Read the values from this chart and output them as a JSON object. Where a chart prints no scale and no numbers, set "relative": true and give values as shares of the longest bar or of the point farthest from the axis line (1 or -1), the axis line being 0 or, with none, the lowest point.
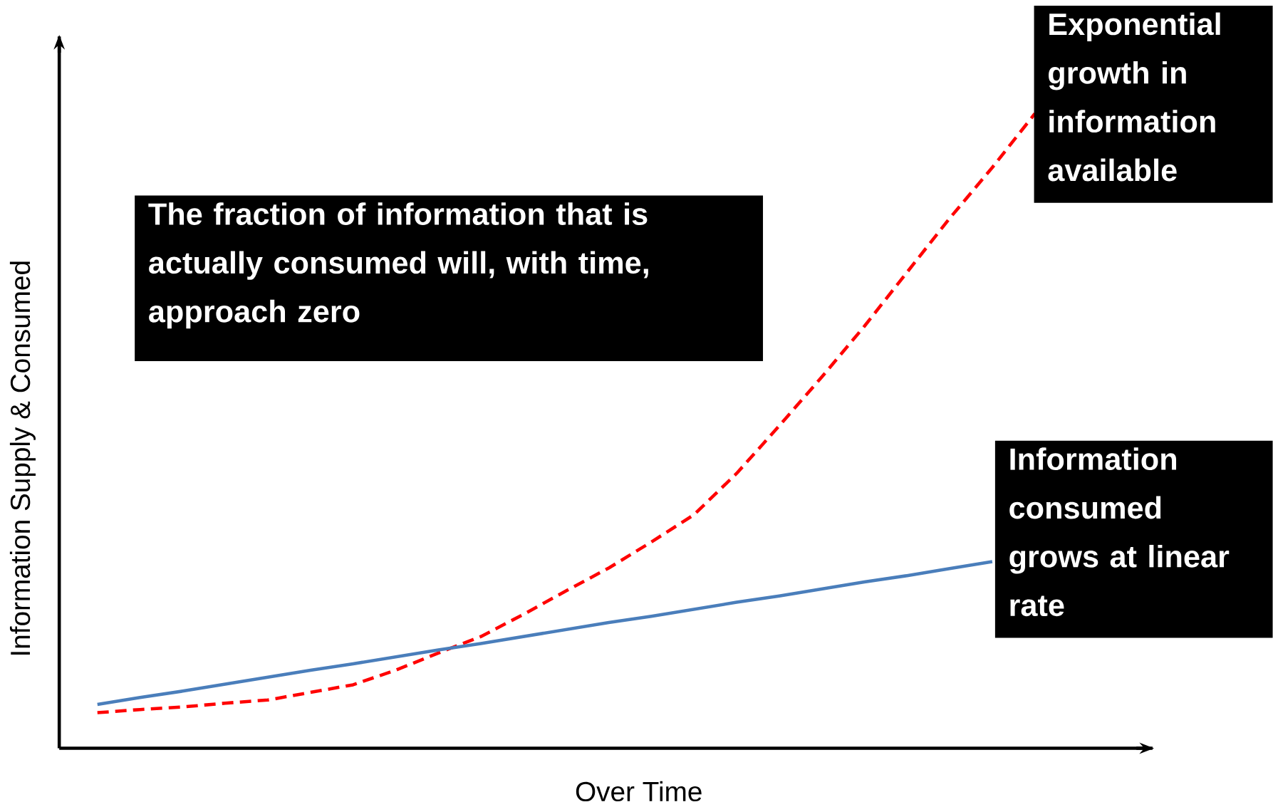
{
  "chart_data": {
    "type": "line",
    "relative": true,
    "xlabel": "Over Time",
    "ylabel": "Information Supply & Consumed",
    "categories": [
      null,
      null,
      null,
      null,
      null,
      null,
      null,
      null,
      null,
      null,
      null,
      null,
      null,
      null,
      null,
      null,
      null,
      null,
      null,
      null,
      null,
      null,
      null
    ],
    "series": [
      {
        "color": "#ff0000",
        "line_style": "dashed",
        "values": [
          0.056,
          0.061,
          0.065,
          0.071,
          0.076,
          0.088,
          0.1,
          0.123,
          0.15,
          0.176,
          0.211,
          0.248,
          0.284,
          0.325,
          0.368,
          0.433,
          0.508,
          0.585,
          0.665,
          0.75,
          0.835,
          0.915,
          1
        ]
      },
      {
        "color": "#4a7ebb",
        "line_style": "solid",
        "values": [
          0.069,
          0.08,
          0.09,
          0.101,
          0.112,
          0.123,
          0.133,
          0.144,
          0.155,
          0.165,
          0.176,
          0.187,
          0.198,
          0.208,
          0.219,
          0.23,
          0.24,
          0.251,
          0.262,
          0.272,
          0.283,
          0.294,
          null
        ]
      }
    ],
    "annotations": [
      "The fraction of information that is actually consumed will, with time, approach zero",
      "Exponential growth in information available",
      "Information consumed grows at linear rate"
    ]
  }
}
